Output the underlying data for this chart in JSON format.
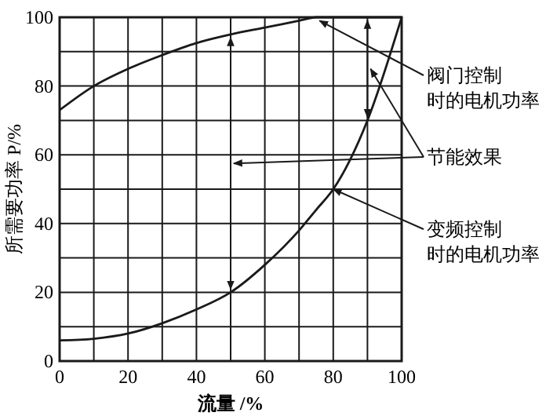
{
  "chart_data": {
    "type": "line",
    "xlabel": "流量 /%",
    "ylabel": "所需要功率 P/%",
    "x": [
      0,
      10,
      20,
      30,
      40,
      50,
      60,
      70,
      75,
      80,
      90,
      100
    ],
    "series": [
      {
        "color": "#1a1a1a",
        "values": [
          73,
          80,
          85,
          89,
          92.5,
          95,
          97,
          99,
          100,
          100,
          100,
          100
        ]
      },
      {
        "color": "#1a1a1a",
        "values": [
          6,
          6.5,
          8,
          11,
          15,
          20,
          28,
          38,
          44,
          50,
          70,
          100
        ]
      }
    ],
    "xlim": [
      0,
      100
    ],
    "ylim": [
      0,
      100
    ],
    "xticks": [
      0,
      {
        "value": 10,
        "label": null
      },
      20,
      {
        "value": 30,
        "label": null
      },
      40,
      {
        "value": 50,
        "label": null
      },
      60,
      {
        "value": 70,
        "label": null
      },
      80,
      {
        "value": 90,
        "label": null
      },
      100
    ],
    "yticks": [
      0,
      {
        "value": 10,
        "label": null
      },
      20,
      {
        "value": 30,
        "label": null
      },
      40,
      {
        "value": 50,
        "label": null
      },
      60,
      {
        "value": 70,
        "label": null
      },
      80,
      {
        "value": 90,
        "label": null
      },
      100
    ],
    "grid": true,
    "marker": "none",
    "line_style": "solid",
    "annotations": [
      {
        "text": "阀门控制时的电机功率",
        "x": 76,
        "y": 99
      },
      "节能效果",
      {
        "text": "变频控制时的电机功率",
        "x": 80,
        "y": 50
      }
    ]
  }
}
